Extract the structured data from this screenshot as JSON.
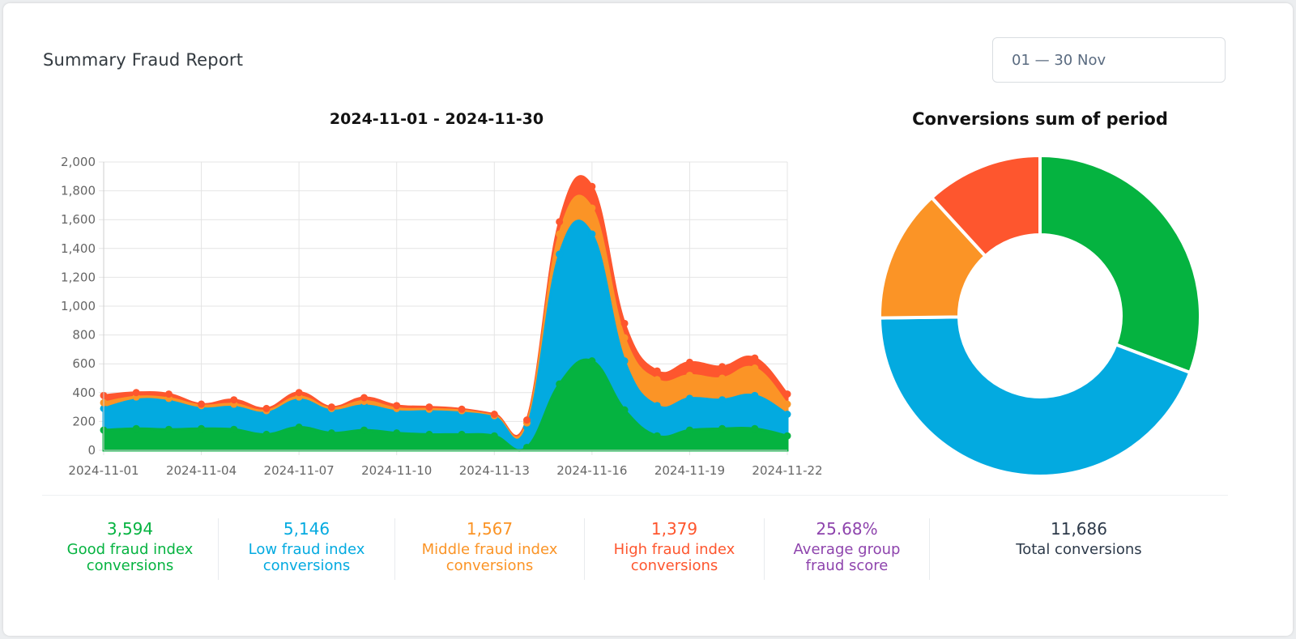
{
  "header": {
    "title": "Summary Fraud Report",
    "date_range": "01 — 30 Nov"
  },
  "colors": {
    "good": "#05b340",
    "low": "#03aae0",
    "middle": "#fb9426",
    "high": "#fe562e",
    "score": "#8e44ad",
    "total": "#2d3a4a"
  },
  "chart_data": [
    {
      "type": "area",
      "stacked": true,
      "title": "2024-11-01 - 2024-11-30",
      "x_labels": [
        "2024-11-01",
        "",
        "",
        "2024-11-04",
        "",
        "",
        "2024-11-07",
        "",
        "",
        "2024-11-10",
        "",
        "",
        "2024-11-13",
        "",
        "",
        "2024-11-16",
        "",
        "",
        "2024-11-19",
        "",
        "",
        "2024-11-22"
      ],
      "ylim": [
        0,
        2000
      ],
      "yticks": [
        "0",
        "200",
        "400",
        "600",
        "800",
        "1,000",
        "1,200",
        "1,400",
        "1,600",
        "1,800",
        "2,000"
      ],
      "grid": true,
      "series": [
        {
          "key": "good",
          "values": [
            140,
            150,
            145,
            150,
            145,
            110,
            160,
            120,
            140,
            120,
            110,
            110,
            100,
            20,
            460,
            620,
            280,
            100,
            140,
            150,
            150,
            100
          ]
        },
        {
          "key": "low",
          "values": [
            150,
            200,
            195,
            140,
            155,
            150,
            190,
            155,
            170,
            150,
            160,
            150,
            130,
            140,
            900,
            880,
            340,
            210,
            220,
            200,
            230,
            150
          ]
        },
        {
          "key": "middle",
          "values": [
            40,
            20,
            20,
            20,
            20,
            15,
            20,
            15,
            30,
            20,
            15,
            15,
            10,
            30,
            140,
            180,
            160,
            180,
            160,
            150,
            190,
            70
          ]
        },
        {
          "key": "high",
          "values": [
            50,
            30,
            30,
            10,
            30,
            15,
            30,
            10,
            25,
            20,
            15,
            10,
            10,
            20,
            85,
            150,
            100,
            60,
            90,
            80,
            70,
            70
          ]
        }
      ]
    },
    {
      "type": "pie",
      "donut": true,
      "title": "Conversions sum of period",
      "series": [
        {
          "key": "good",
          "value": 3594
        },
        {
          "key": "low",
          "value": 5146
        },
        {
          "key": "middle",
          "value": 1567
        },
        {
          "key": "high",
          "value": 1379
        }
      ]
    }
  ],
  "stats": [
    {
      "key": "good",
      "value": "3,594",
      "label_1": "Good fraud index",
      "label_2": "conversions"
    },
    {
      "key": "low",
      "value": "5,146",
      "label_1": "Low fraud index",
      "label_2": "conversions"
    },
    {
      "key": "middle",
      "value": "1,567",
      "label_1": "Middle fraud index",
      "label_2": "conversions"
    },
    {
      "key": "high",
      "value": "1,379",
      "label_1": "High fraud index",
      "label_2": "conversions"
    },
    {
      "key": "score",
      "value": "25.68%",
      "label_1": "Average group",
      "label_2": "fraud score"
    },
    {
      "key": "total",
      "value": "11,686",
      "label_1": "Total conversions",
      "label_2": ""
    }
  ]
}
